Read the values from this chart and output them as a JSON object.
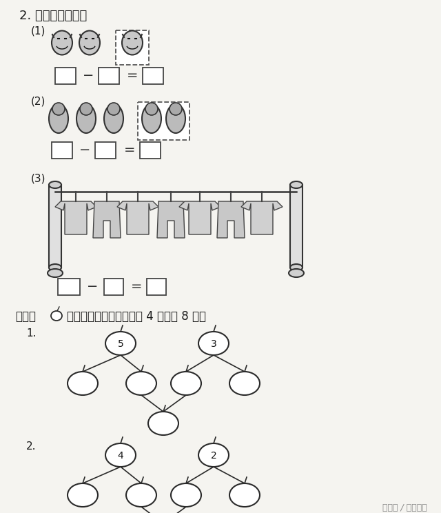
{
  "bg_color": "#f5f4f0",
  "text_color": "#1a1a1a",
  "title2": "2. 写出减法算式。",
  "label1": "(1)",
  "label2": "(2)",
  "label3": "(3)",
  "sec8_text": "八、在里填上适当的数。（每题 4 分，共 8 分）",
  "watermark": "头条号 / 小玛数学",
  "tree1_labels": [
    "5",
    "3"
  ],
  "tree2_labels": [
    "4",
    "2"
  ]
}
